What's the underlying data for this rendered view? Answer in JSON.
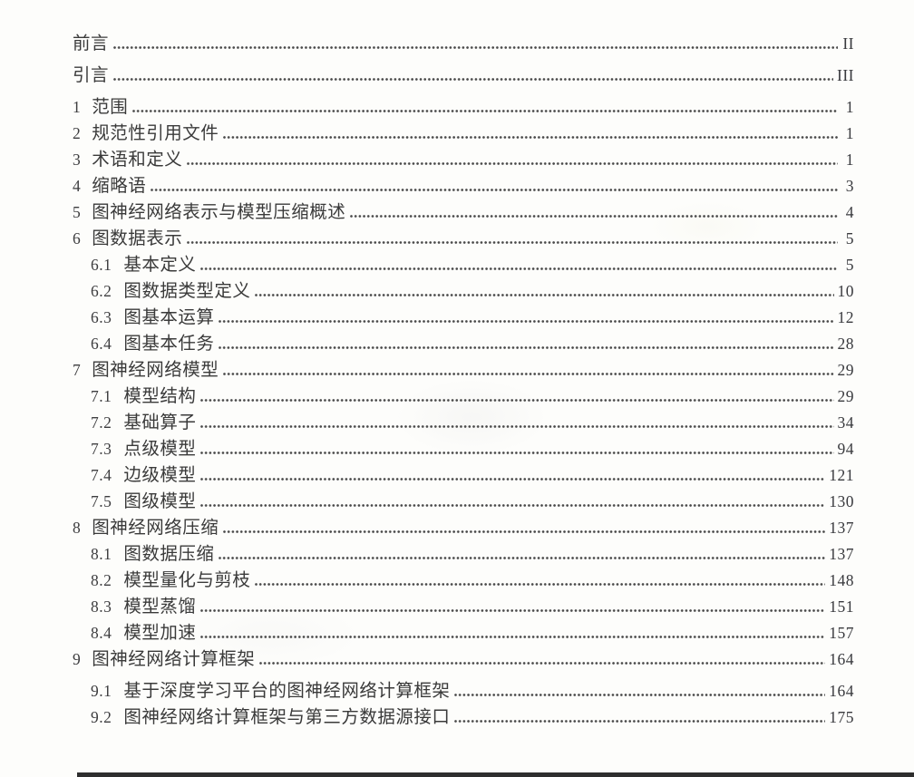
{
  "toc": {
    "entries": [
      {
        "num": "",
        "label": "前言",
        "page": "II",
        "level": 0
      },
      {
        "num": "",
        "label": "引言",
        "page": "III",
        "level": 0
      },
      {
        "num": "1",
        "label": "范围",
        "page": "1",
        "level": 0
      },
      {
        "num": "2",
        "label": "规范性引用文件",
        "page": "1",
        "level": 0
      },
      {
        "num": "3",
        "label": "术语和定义",
        "page": "1",
        "level": 0
      },
      {
        "num": "4",
        "label": "缩略语",
        "page": "3",
        "level": 0
      },
      {
        "num": "5",
        "label": "图神经网络表示与模型压缩概述",
        "page": "4",
        "level": 0
      },
      {
        "num": "6",
        "label": "图数据表示",
        "page": "5",
        "level": 0
      },
      {
        "num": "6.1",
        "label": "基本定义",
        "page": "5",
        "level": 1
      },
      {
        "num": "6.2",
        "label": "图数据类型定义",
        "page": "10",
        "level": 1
      },
      {
        "num": "6.3",
        "label": "图基本运算",
        "page": "12",
        "level": 1
      },
      {
        "num": "6.4",
        "label": "图基本任务",
        "page": "28",
        "level": 1
      },
      {
        "num": "7",
        "label": "图神经网络模型",
        "page": "29",
        "level": 0
      },
      {
        "num": "7.1",
        "label": "模型结构",
        "page": "29",
        "level": 1
      },
      {
        "num": "7.2",
        "label": "基础算子",
        "page": "34",
        "level": 1
      },
      {
        "num": "7.3",
        "label": "点级模型",
        "page": "94",
        "level": 1
      },
      {
        "num": "7.4",
        "label": "边级模型",
        "page": "121",
        "level": 1
      },
      {
        "num": "7.5",
        "label": "图级模型",
        "page": "130",
        "level": 1
      },
      {
        "num": "8",
        "label": "图神经网络压缩",
        "page": "137",
        "level": 0
      },
      {
        "num": "8.1",
        "label": "图数据压缩",
        "page": "137",
        "level": 1
      },
      {
        "num": "8.2",
        "label": "模型量化与剪枝",
        "page": "148",
        "level": 1
      },
      {
        "num": "8.3",
        "label": "模型蒸馏",
        "page": "151",
        "level": 1
      },
      {
        "num": "8.4",
        "label": "模型加速",
        "page": "157",
        "level": 1
      },
      {
        "num": "9",
        "label": "图神经网络计算框架",
        "page": "164",
        "level": 0
      },
      {
        "num": "9.1",
        "label": "基于深度学习平台的图神经网络计算框架",
        "page": "164",
        "level": 1
      },
      {
        "num": "9.2",
        "label": "图神经网络计算框架与第三方数据源接口",
        "page": "175",
        "level": 1
      }
    ]
  },
  "colors": {
    "text": "#3a3a3a",
    "dot_leader": "#4a4a4a",
    "page_background": "#fdfdfb",
    "bottom_bar": "#2e2e2e"
  }
}
